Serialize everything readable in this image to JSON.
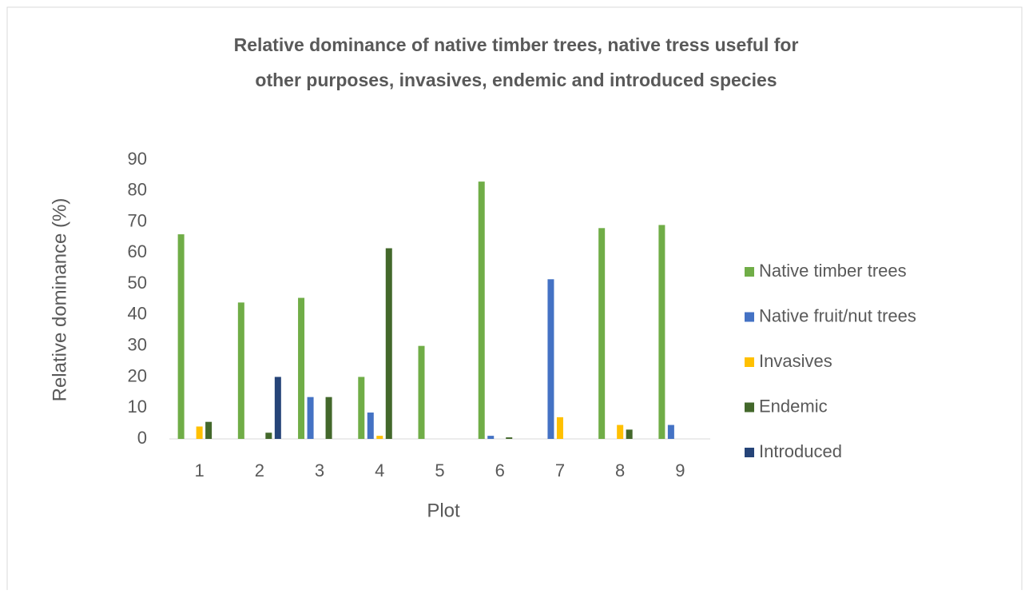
{
  "chart_data": {
    "type": "bar",
    "title": [
      "Relative dominance of native timber trees, native tress useful for",
      "other purposes, invasives, endemic and introduced species"
    ],
    "x_label": "Plot",
    "y_label": "Relative dominance (%)",
    "categories": [
      "1",
      "2",
      "3",
      "4",
      "5",
      "6",
      "7",
      "8",
      "9"
    ],
    "series": [
      {
        "name": "Native timber trees",
        "color": "#70ad47",
        "values": [
          66,
          44,
          45.5,
          20,
          30,
          83,
          0,
          68,
          69
        ]
      },
      {
        "name": "Native fruit/nut trees",
        "color": "#4472c4",
        "values": [
          0,
          0,
          13.5,
          8.5,
          0,
          1,
          51.5,
          0,
          4.5
        ]
      },
      {
        "name": "Invasives",
        "color": "#ffc000",
        "values": [
          4,
          0,
          0,
          1,
          0,
          0,
          7,
          4.5,
          0
        ]
      },
      {
        "name": "Endemic",
        "color": "#43682b",
        "values": [
          5.5,
          2,
          13.5,
          61.5,
          0,
          0.5,
          0,
          3,
          0
        ]
      },
      {
        "name": "Introduced",
        "color": "#264478",
        "values": [
          0,
          20,
          0,
          0,
          0,
          0,
          0,
          0,
          0
        ]
      }
    ],
    "ylim": [
      0,
      90
    ],
    "yticks": [
      0,
      10,
      20,
      30,
      40,
      50,
      60,
      70,
      80,
      90
    ],
    "legend": "right",
    "grid": false
  }
}
